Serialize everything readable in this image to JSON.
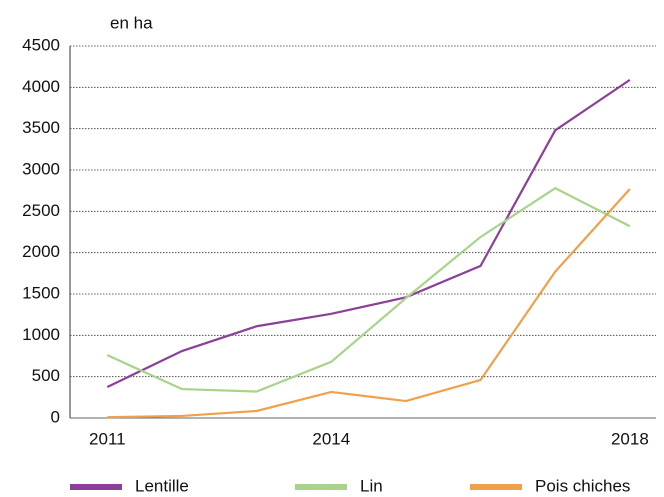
{
  "chart_data": {
    "type": "line",
    "y_label": "en ha",
    "x": [
      2011,
      2012,
      2013,
      2014,
      2015,
      2016,
      2017,
      2018
    ],
    "series": [
      {
        "name": "Lentille",
        "color": "#8b3f99",
        "values": [
          375,
          810,
          1110,
          1260,
          1460,
          1840,
          3480,
          4090
        ]
      },
      {
        "name": "Lin",
        "color": "#a8d38a",
        "values": [
          760,
          350,
          320,
          680,
          1450,
          2190,
          2780,
          2320
        ]
      },
      {
        "name": "Pois chiches",
        "color": "#f0a04b",
        "values": [
          10,
          25,
          85,
          315,
          205,
          460,
          1770,
          2770
        ]
      }
    ],
    "xlim": [
      2010.5,
      2018.35
    ],
    "xticks": [
      2011,
      2014,
      2018
    ],
    "ylim": [
      0,
      4500
    ],
    "yticks": [
      0,
      500,
      1000,
      1500,
      2000,
      2500,
      3000,
      3500,
      4000,
      4500
    ],
    "grid": true,
    "legend": "bottom"
  }
}
